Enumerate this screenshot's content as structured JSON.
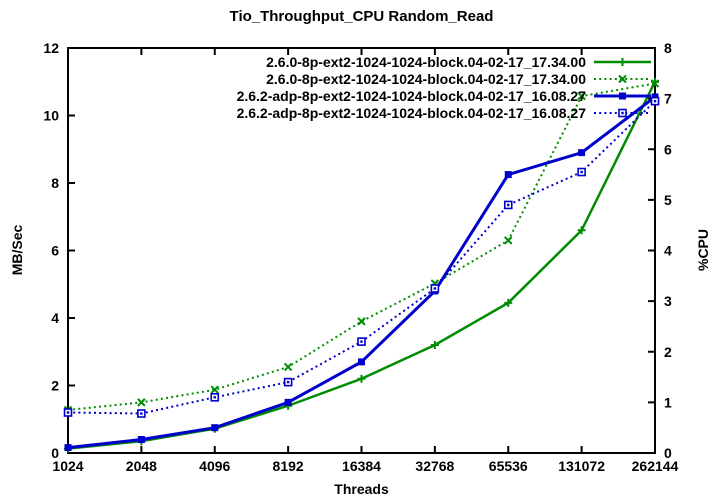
{
  "chart_data": {
    "type": "line",
    "title": "Tio_Throughput_CPU Random_Read",
    "xlabel": "Threads",
    "ylabel_left": "MB/Sec",
    "ylabel_right": "%CPU",
    "x_scale": "log2",
    "categories": [
      "1024",
      "2048",
      "4096",
      "8192",
      "16384",
      "32768",
      "65536",
      "131072",
      "262144"
    ],
    "ylim_left": [
      0,
      12
    ],
    "ylim_right": [
      0,
      8
    ],
    "yticks_left": [
      0,
      2,
      4,
      6,
      8,
      10,
      12
    ],
    "yticks_right": [
      0,
      1,
      2,
      3,
      4,
      5,
      6,
      7,
      8
    ],
    "grid": false,
    "legend_position": "top-right-inside",
    "colors": {
      "kernel_260": "#008c00",
      "kernel_262": "#0000cc"
    },
    "series": [
      {
        "name": "2.6.0-8p-ext2-1024-1024-block.04-02-17_17.34.00",
        "axis": "left",
        "unit": "MB/Sec",
        "color": "#008c00",
        "line": "solid",
        "marker": "plus",
        "values": [
          0.13,
          0.35,
          0.72,
          1.4,
          2.2,
          3.2,
          4.45,
          6.6,
          11.0
        ]
      },
      {
        "name": "2.6.0-8p-ext2-1024-1024-block.04-02-17_17.34.00",
        "axis": "right",
        "unit": "%CPU",
        "color": "#008c00",
        "line": "dotted",
        "marker": "cross",
        "values": [
          0.85,
          1.0,
          1.25,
          1.7,
          2.6,
          3.35,
          4.2,
          7.05,
          7.3
        ]
      },
      {
        "name": "2.6.2-adp-8p-ext2-1024-1024-block.04-02-17_16.08.27",
        "axis": "left",
        "unit": "MB/Sec",
        "color": "#0000cc",
        "line": "solid",
        "marker": "square-filled",
        "values": [
          0.16,
          0.4,
          0.75,
          1.5,
          2.7,
          4.8,
          8.25,
          8.9,
          10.55
        ]
      },
      {
        "name": "2.6.2-adp-8p-ext2-1024-1024-block.04-02-17_16.08.27",
        "axis": "right",
        "unit": "%CPU",
        "color": "#0000cc",
        "line": "dotted",
        "marker": "square-open",
        "values": [
          0.8,
          0.78,
          1.1,
          1.4,
          2.2,
          3.25,
          4.9,
          5.55,
          6.95
        ]
      }
    ]
  }
}
